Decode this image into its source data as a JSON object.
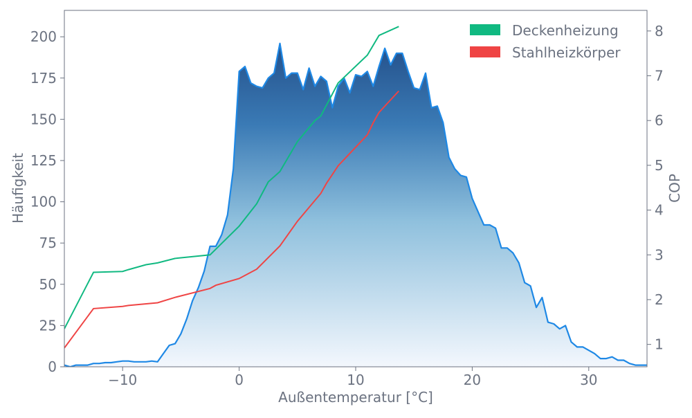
{
  "chart_data": {
    "type": "area",
    "xlabel": "Außentemperatur [°C]",
    "ylabel": "Häufigkeit",
    "y2label": "COP",
    "xlim": [
      -15,
      35
    ],
    "ylim": [
      0,
      216
    ],
    "y2lim": [
      0.5,
      8.46
    ],
    "xticks": [
      -10,
      0,
      10,
      20,
      30
    ],
    "xtick_labels": [
      "−10",
      "0",
      "10",
      "20",
      "30"
    ],
    "yticks": [
      0,
      25,
      50,
      75,
      100,
      125,
      150,
      175,
      200
    ],
    "y2ticks": [
      1,
      2,
      3,
      4,
      5,
      6,
      7,
      8
    ],
    "grid": false,
    "legend_position": "top-right",
    "histogram": {
      "name": "Häufigkeit",
      "color": "#1e88e5",
      "x_start": -15,
      "x_step": 0.5,
      "values": [
        1,
        0,
        1,
        1,
        1,
        2,
        2,
        2.5,
        2.5,
        3,
        3.5,
        3.5,
        3,
        3,
        3,
        3.5,
        3,
        8,
        13,
        14,
        20,
        29,
        40,
        48,
        58,
        73,
        73,
        80,
        92,
        120,
        179,
        182,
        172,
        170,
        169,
        175,
        178,
        196,
        175,
        178,
        178,
        168,
        181,
        170,
        176,
        173,
        157,
        170,
        175,
        166,
        177,
        176,
        179,
        170,
        182,
        193,
        183,
        190,
        190,
        179,
        169,
        168,
        178,
        157,
        158,
        148,
        127,
        120,
        116,
        115,
        102,
        94,
        86,
        86,
        84,
        72,
        72,
        69,
        63,
        51,
        49,
        36,
        42,
        27,
        26,
        23,
        25,
        15,
        12,
        12,
        10,
        8,
        5,
        5,
        6,
        4,
        4,
        2,
        1,
        1,
        1
      ]
    },
    "series": [
      {
        "name": "Deckenheizung",
        "color": "#10b981",
        "x": [
          -15,
          -12.5,
          -10,
          -9.5,
          -8,
          -7,
          -5.5,
          -2.5,
          0,
          1.5,
          2.5,
          3.5,
          5,
          6.5,
          7,
          8.5,
          11,
          12,
          13.7
        ],
        "y": [
          1.35,
          2.61,
          2.63,
          2.67,
          2.78,
          2.82,
          2.92,
          3.0,
          3.64,
          4.14,
          4.63,
          4.86,
          5.53,
          6.0,
          6.1,
          6.84,
          7.46,
          7.9,
          8.1
        ]
      },
      {
        "name": "Stahlheizkörper",
        "color": "#ef4444",
        "x": [
          -15,
          -12.5,
          -10,
          -9.5,
          -7,
          -5.5,
          -2.5,
          -2,
          0,
          1.5,
          3.5,
          5,
          7,
          7.5,
          8.5,
          11,
          11.5,
          12,
          13.7
        ],
        "y": [
          0.92,
          1.8,
          1.85,
          1.87,
          1.93,
          2.05,
          2.25,
          2.32,
          2.47,
          2.68,
          3.2,
          3.75,
          4.37,
          4.6,
          4.99,
          5.68,
          5.95,
          6.18,
          6.66
        ]
      }
    ]
  }
}
